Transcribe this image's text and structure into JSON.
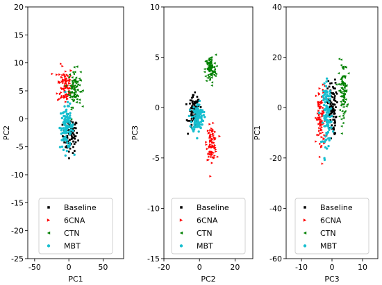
{
  "colors": {
    "Baseline": "#000000",
    "6CNA": "#ff0000",
    "CTN": "#008000",
    "MBT": "#17becf"
  },
  "chart_data": [
    {
      "type": "scatter",
      "xlabel": "PC1",
      "ylabel": "PC2",
      "xlim": [
        -60,
        80
      ],
      "ylim": [
        -25,
        20
      ],
      "xticks": [
        -50,
        0,
        50
      ],
      "yticks": [
        -25,
        -20,
        -15,
        -10,
        -5,
        0,
        5,
        10,
        15,
        20
      ],
      "legend": "lower-center",
      "series": [
        {
          "name": "Baseline",
          "marker": "square",
          "center": [
            2,
            -3
          ],
          "spread": [
            10,
            2.8
          ],
          "n": 90
        },
        {
          "name": "6CNA",
          "marker": "triangle-right",
          "center": [
            -5,
            6
          ],
          "spread": [
            10,
            3.2
          ],
          "n": 90
        },
        {
          "name": "CTN",
          "marker": "triangle-left",
          "center": [
            8,
            5.5
          ],
          "spread": [
            8,
            3
          ],
          "n": 90
        },
        {
          "name": "MBT",
          "marker": "circle",
          "center": [
            -3,
            -1.5
          ],
          "spread": [
            9,
            3.5
          ],
          "n": 110
        }
      ]
    },
    {
      "type": "scatter",
      "xlabel": "PC2",
      "ylabel": "PC3",
      "xlim": [
        -20,
        30
      ],
      "ylim": [
        -15,
        10
      ],
      "xticks": [
        -20,
        0,
        20
      ],
      "yticks": [
        -15,
        -10,
        -5,
        0,
        5,
        10
      ],
      "legend": "lower-center",
      "series": [
        {
          "name": "Baseline",
          "marker": "square",
          "center": [
            -3,
            -0.5
          ],
          "spread": [
            2.8,
            1.5
          ],
          "n": 90
        },
        {
          "name": "6CNA",
          "marker": "triangle-right",
          "center": [
            7,
            -3.5
          ],
          "spread": [
            2.5,
            1.5
          ],
          "n": 90
        },
        {
          "name": "CTN",
          "marker": "triangle-left",
          "center": [
            6,
            3.8
          ],
          "spread": [
            2.8,
            1.3
          ],
          "n": 90
        },
        {
          "name": "MBT",
          "marker": "circle",
          "center": [
            -1,
            -1
          ],
          "spread": [
            3,
            1.3
          ],
          "n": 110
        }
      ]
    },
    {
      "type": "scatter",
      "xlabel": "PC3",
      "ylabel": "PC1",
      "xlim": [
        -15,
        15
      ],
      "ylim": [
        -60,
        40
      ],
      "xticks": [
        -10,
        0,
        10
      ],
      "yticks": [
        -60,
        -40,
        -20,
        0,
        20,
        40
      ],
      "legend": "lower-center",
      "series": [
        {
          "name": "Baseline",
          "marker": "square",
          "center": [
            0,
            0
          ],
          "spread": [
            1.3,
            10
          ],
          "n": 90
        },
        {
          "name": "6CNA",
          "marker": "triangle-right",
          "center": [
            -3.5,
            -5
          ],
          "spread": [
            1.4,
            12
          ],
          "n": 90
        },
        {
          "name": "CTN",
          "marker": "triangle-left",
          "center": [
            3.5,
            7
          ],
          "spread": [
            1.3,
            10
          ],
          "n": 90
        },
        {
          "name": "MBT",
          "marker": "circle",
          "center": [
            -1.5,
            -3
          ],
          "spread": [
            1.3,
            11
          ],
          "n": 110
        }
      ]
    }
  ]
}
